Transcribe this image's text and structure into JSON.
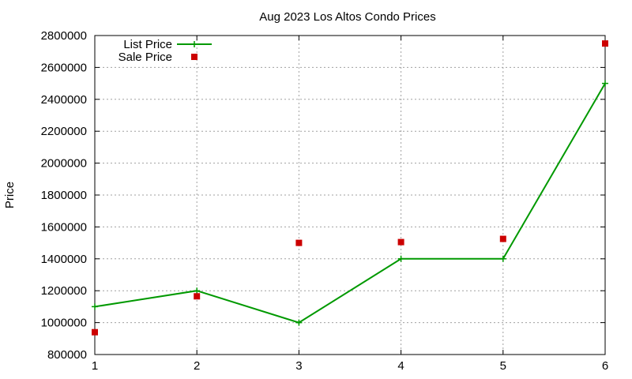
{
  "chart_data": {
    "type": "line",
    "title": "Aug 2023 Los Altos Condo Prices",
    "xlabel": "",
    "ylabel": "Price",
    "xlim": [
      1,
      6
    ],
    "ylim": [
      800000,
      2800000
    ],
    "x_ticks": [
      "1",
      "2",
      "3",
      "4",
      "5",
      "6"
    ],
    "y_ticks": [
      "800000",
      "1000000",
      "1200000",
      "1400000",
      "1600000",
      "1800000",
      "2000000",
      "2200000",
      "2400000",
      "2600000",
      "2800000"
    ],
    "grid": true,
    "legend_position": "top-left",
    "x": [
      1,
      2,
      3,
      4,
      5,
      6
    ],
    "series": [
      {
        "name": "List Price",
        "style": "line+points",
        "color": "#009900",
        "values": [
          1100000,
          1200000,
          1000000,
          1400000,
          1400000,
          2500000
        ]
      },
      {
        "name": "Sale Price",
        "style": "points",
        "color": "#cc0000",
        "values": [
          940000,
          1165000,
          1500000,
          1505000,
          1525000,
          2750000
        ]
      }
    ]
  }
}
